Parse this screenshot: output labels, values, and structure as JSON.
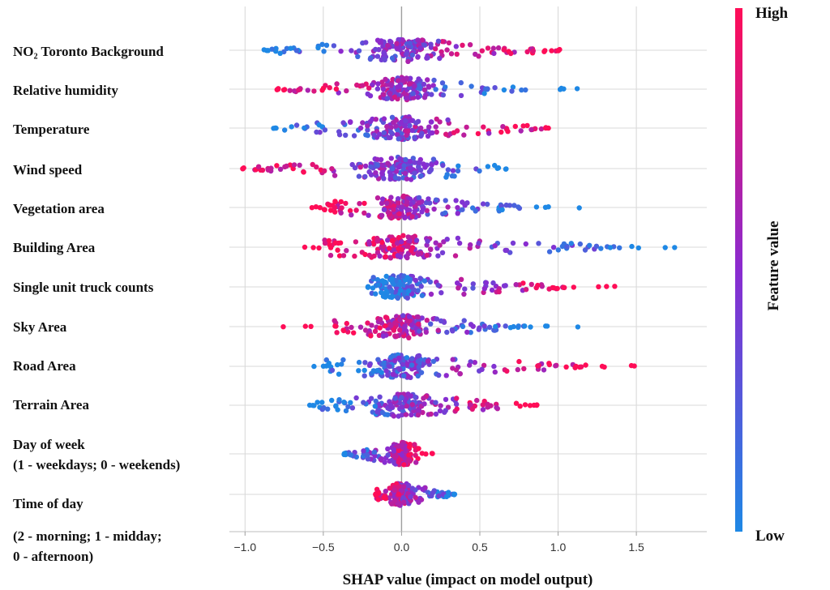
{
  "chart_data": {
    "type": "scatter",
    "subtype": "shap-beeswarm",
    "title": "",
    "xlabel": "SHAP value (impact on model output)",
    "xlim": [
      -1.1,
      1.95
    ],
    "xticks": [
      -1.0,
      -0.5,
      0.0,
      0.5,
      1.0,
      1.5
    ],
    "xtick_labels": [
      "−1.0",
      "−0.5",
      "0.0",
      "0.5",
      "1.0",
      "1.5"
    ],
    "grid": "vertical",
    "colorbar": {
      "title": "Feature value",
      "high_label": "High",
      "low_label": "Low",
      "high_color": "#ff0d57",
      "low_color": "#1e88e5"
    },
    "features": [
      {
        "label_lines": [
          "NO₂ Toronto Background"
        ],
        "min": -0.88,
        "max": 1.02,
        "dense_min": -0.85,
        "dense_max": 0.99,
        "low_side": "left"
      },
      {
        "label_lines": [
          "Relative humidity"
        ],
        "min": -0.8,
        "max": 1.17,
        "dense_min": -0.78,
        "dense_max": 0.8,
        "low_side": "right"
      },
      {
        "label_lines": [
          "Temperature"
        ],
        "min": -0.83,
        "max": 0.94,
        "dense_min": -0.8,
        "dense_max": 0.92,
        "low_side": "left"
      },
      {
        "label_lines": [
          "Wind speed"
        ],
        "min": -1.02,
        "max": 0.68,
        "dense_min": -0.98,
        "dense_max": 0.6,
        "low_side": "right"
      },
      {
        "label_lines": [
          "Vegetation area"
        ],
        "min": -0.6,
        "max": 1.15,
        "dense_min": -0.5,
        "dense_max": 0.8,
        "low_side": "right"
      },
      {
        "label_lines": [
          "Building Area"
        ],
        "min": -0.63,
        "max": 1.85,
        "dense_min": -0.5,
        "dense_max": 1.45,
        "low_side": "right"
      },
      {
        "label_lines": [
          "Single unit truck counts"
        ],
        "min": -0.22,
        "max": 1.42,
        "dense_min": -0.2,
        "dense_max": 1.05,
        "low_side": "left"
      },
      {
        "label_lines": [
          "Sky Area"
        ],
        "min": -0.77,
        "max": 1.13,
        "dense_min": -0.45,
        "dense_max": 0.8,
        "low_side": "right"
      },
      {
        "label_lines": [
          "Road Area"
        ],
        "min": -0.58,
        "max": 1.52,
        "dense_min": -0.48,
        "dense_max": 1.2,
        "low_side": "left"
      },
      {
        "label_lines": [
          "Terrain Area"
        ],
        "min": -0.62,
        "max": 0.94,
        "dense_min": -0.55,
        "dense_max": 0.8,
        "low_side": "left"
      },
      {
        "label_lines": [
          "Day of week",
          "(1 - weekdays; 0 - weekends)"
        ],
        "min": -0.37,
        "max": 0.2,
        "dense_min": -0.36,
        "dense_max": 0.12,
        "low_side": "left"
      },
      {
        "label_lines": [
          "Time of day",
          "(2 - morning; 1 - midday;",
          "0 - afternoon)"
        ],
        "min": -0.17,
        "max": 0.34,
        "dense_min": -0.16,
        "dense_max": 0.33,
        "low_side": "right"
      }
    ]
  }
}
